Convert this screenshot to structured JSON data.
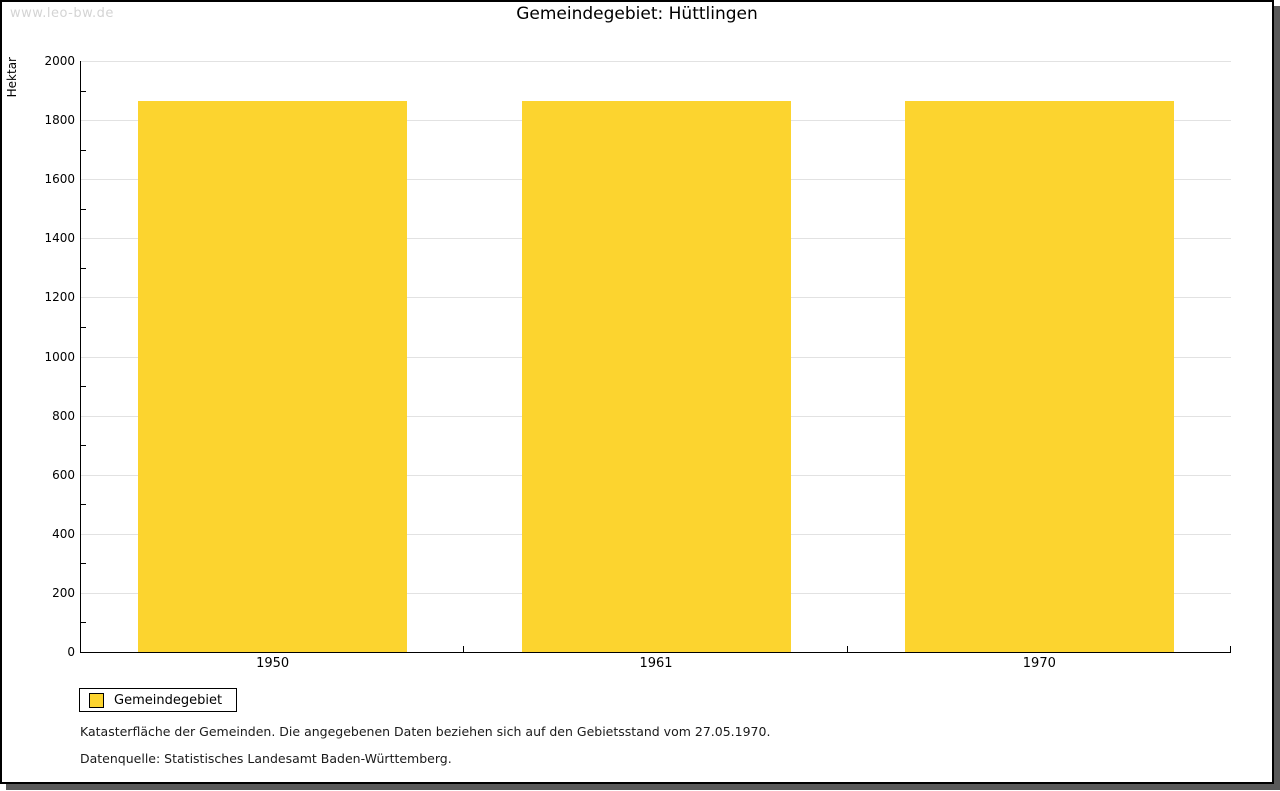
{
  "watermark": "www.leo-bw.de",
  "title": "Gemeindegebiet: Hüttlingen",
  "chart_data": {
    "type": "bar",
    "title": "Gemeindegebiet: Hüttlingen",
    "categories": [
      "1950",
      "1961",
      "1970"
    ],
    "values": [
      1866,
      1866,
      1866
    ],
    "xlabel": "",
    "ylabel": "Hektar",
    "ylim": [
      0,
      2000
    ],
    "ytick_step": 200,
    "y_minor_tick_step": 100,
    "grid": true,
    "bar_color": "#fcd42f",
    "gridline_color": "#e2e2e2",
    "legend": [
      {
        "label": "Gemeindegebiet",
        "color": "#fcd42f"
      }
    ],
    "legend_position": "bottom-left"
  },
  "footer": {
    "note": "Katasterfläche der Gemeinden. Die angegebenen Daten beziehen sich auf den Gebietsstand vom 27.05.1970.",
    "source": "Datenquelle: Statistisches Landesamt Baden-Württemberg."
  }
}
